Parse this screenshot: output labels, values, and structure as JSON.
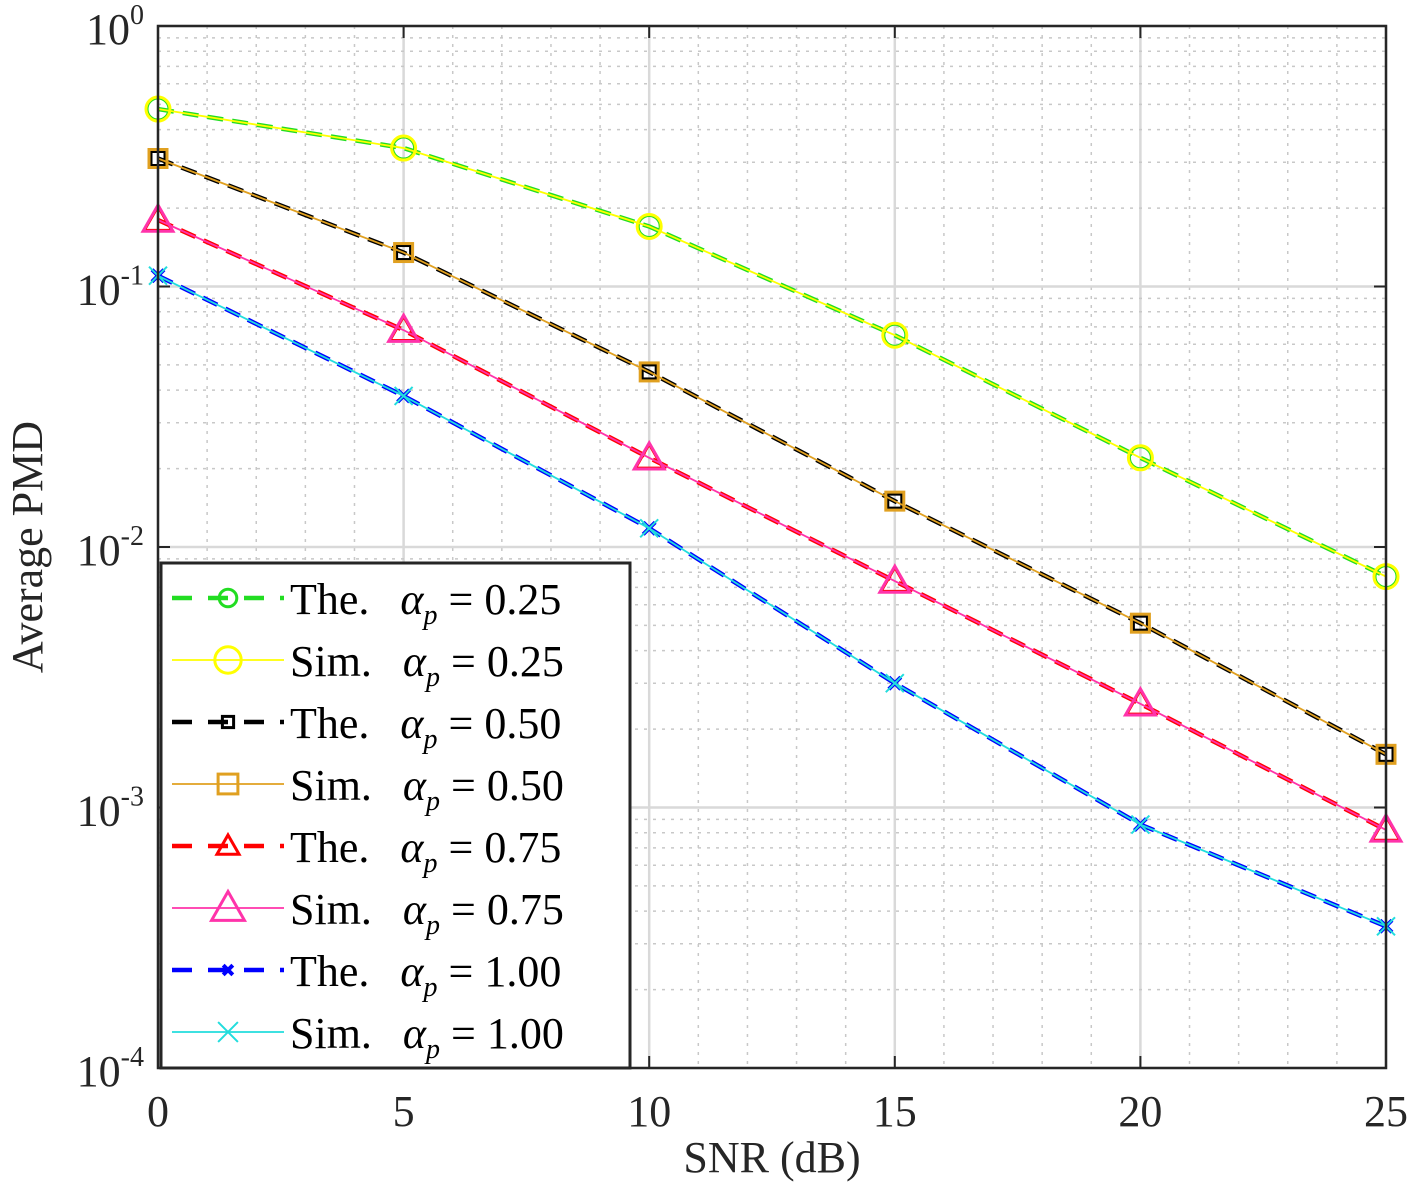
{
  "chart_data": {
    "type": "line",
    "title": "",
    "xlabel": "SNR (dB)",
    "ylabel": "Average PMD",
    "yscale": "log",
    "xlim": [
      0,
      25
    ],
    "ylim": [
      0.0001,
      1
    ],
    "x": [
      0,
      5,
      10,
      15,
      20,
      25
    ],
    "xticks": [
      "0",
      "5",
      "10",
      "15",
      "20",
      "25"
    ],
    "yticks": [
      {
        "base": "10",
        "exp": "-4",
        "value": 0.0001
      },
      {
        "base": "10",
        "exp": "-3",
        "value": 0.001
      },
      {
        "base": "10",
        "exp": "-2",
        "value": 0.01
      },
      {
        "base": "10",
        "exp": "-1",
        "value": 0.1
      },
      {
        "base": "10",
        "exp": "0",
        "value": 1
      }
    ],
    "grid": true,
    "legend_position": "bottom-left",
    "series": [
      {
        "name": "The.",
        "alpha": "0.25",
        "style": "dashed",
        "marker": "circle",
        "color": "#22dd22",
        "values": [
          0.48,
          0.34,
          0.17,
          0.065,
          0.022,
          0.0077
        ]
      },
      {
        "name": "Sim.",
        "alpha": "0.25",
        "style": "solid",
        "marker": "circle",
        "color": "#ffff00",
        "values": [
          0.48,
          0.34,
          0.17,
          0.065,
          0.022,
          0.0077
        ]
      },
      {
        "name": "The.",
        "alpha": "0.50",
        "style": "dashed",
        "marker": "square",
        "color": "#000000",
        "values": [
          0.31,
          0.135,
          0.047,
          0.015,
          0.0051,
          0.0016
        ]
      },
      {
        "name": "Sim.",
        "alpha": "0.50",
        "style": "solid",
        "marker": "square",
        "color": "#e0a020",
        "values": [
          0.31,
          0.135,
          0.047,
          0.015,
          0.0051,
          0.0016
        ]
      },
      {
        "name": "The.",
        "alpha": "0.75",
        "style": "dashed",
        "marker": "triangle",
        "color": "#ff0000",
        "values": [
          0.18,
          0.068,
          0.022,
          0.0074,
          0.0025,
          0.00082
        ]
      },
      {
        "name": "Sim.",
        "alpha": "0.75",
        "style": "solid",
        "marker": "triangle",
        "color": "#ff33aa",
        "values": [
          0.18,
          0.068,
          0.022,
          0.0074,
          0.0025,
          0.00082
        ]
      },
      {
        "name": "The.",
        "alpha": "1.00",
        "style": "dashed",
        "marker": "x-bold",
        "color": "#0000ff",
        "values": [
          0.11,
          0.038,
          0.0118,
          0.003,
          0.00086,
          0.00035
        ]
      },
      {
        "name": "Sim.",
        "alpha": "1.00",
        "style": "solid",
        "marker": "x",
        "color": "#22dddd",
        "values": [
          0.11,
          0.038,
          0.0118,
          0.003,
          0.00086,
          0.00035
        ]
      }
    ]
  }
}
